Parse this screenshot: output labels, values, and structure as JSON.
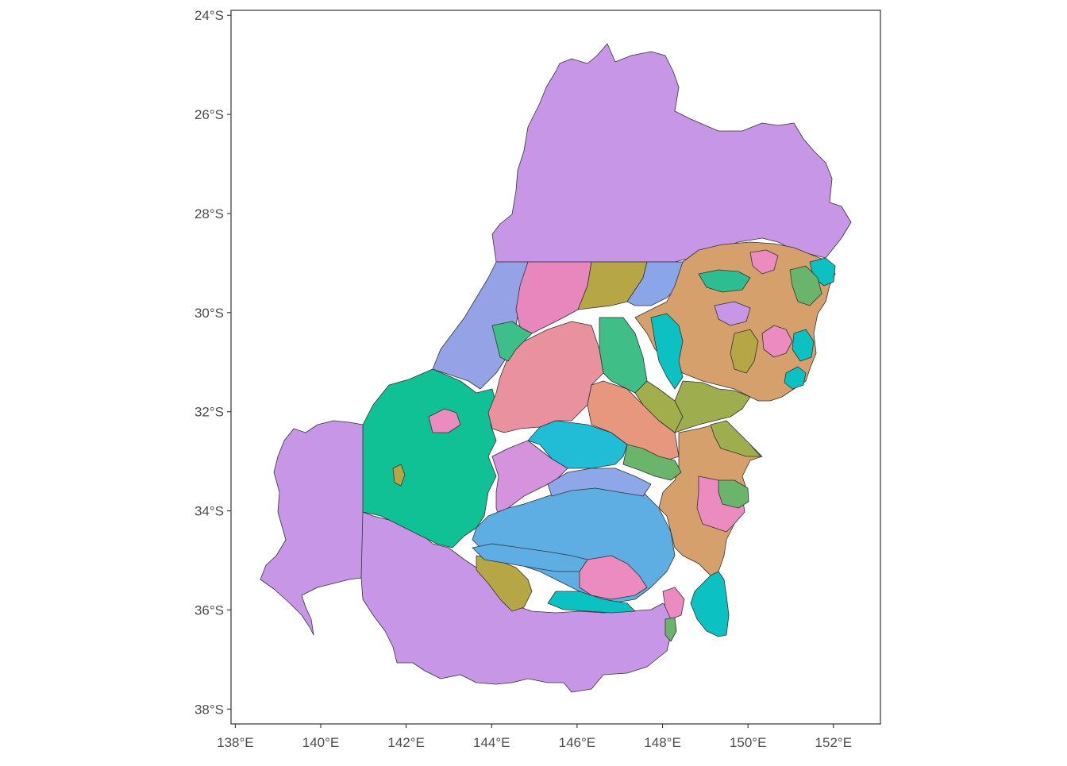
{
  "map": {
    "x_axis": {
      "ticks": [
        "138°E",
        "140°E",
        "142°E",
        "144°E",
        "146°E",
        "148°E",
        "150°E",
        "152°E"
      ],
      "values": [
        138,
        140,
        142,
        144,
        146,
        148,
        150,
        152
      ],
      "range": [
        137.9,
        153.1
      ]
    },
    "y_axis": {
      "ticks": [
        "24°S",
        "26°S",
        "28°S",
        "30°S",
        "32°S",
        "34°S",
        "36°S",
        "38°S"
      ],
      "values": [
        -24,
        -26,
        -28,
        -30,
        -32,
        -34,
        -36,
        -38
      ],
      "range": [
        -38.3,
        -23.9
      ]
    },
    "theme": "bw, no grid, panel border",
    "fill_palette": [
      "#C796E6",
      "#EC8BC0",
      "#B9A94C",
      "#8EA7E9",
      "#2EBD8E",
      "#0CC1C1",
      "#5FB0E3",
      "#D5A06B",
      "#E89485",
      "#9EAE4F",
      "#6AB56B",
      "#3DBF8A"
    ],
    "outline_color": "#333333"
  }
}
